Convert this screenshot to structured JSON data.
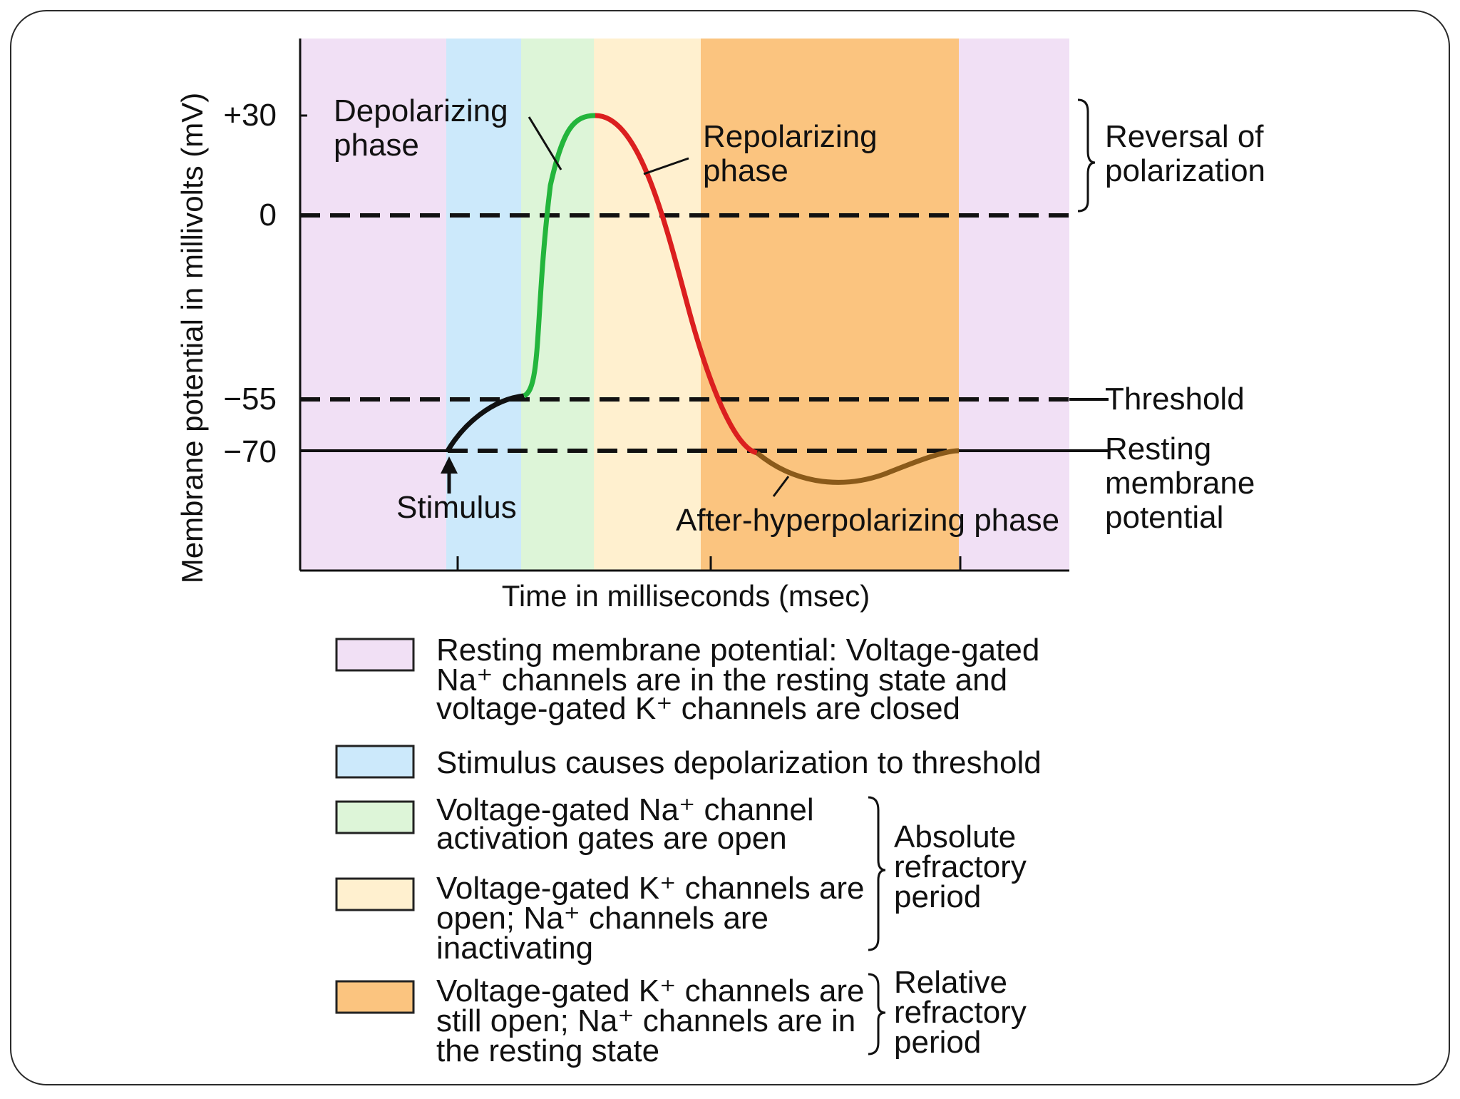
{
  "diagram": {
    "y_axis_label": "Membrane potential in millivolts (mV)",
    "x_axis_label": "Time in milliseconds (msec)",
    "y_ticks": [
      "+30",
      "0",
      "−55",
      "−70"
    ],
    "phase_labels": {
      "depolarizing_line1": "Depolarizing",
      "depolarizing_line2": "phase",
      "repolarizing_line1": "Repolarizing",
      "repolarizing_line2": "phase",
      "after_hyperpolarizing": "After-hyperpolarizing phase",
      "stimulus": "Stimulus"
    },
    "side_labels": {
      "reversal_line1": "Reversal of",
      "reversal_line2": "polarization",
      "threshold": "Threshold",
      "resting_line1": "Resting",
      "resting_line2": "membrane",
      "resting_line3": "potential"
    },
    "colors": {
      "resting": "#f1e0f5",
      "stimulus": "#cce9fb",
      "na_open": "#ddf5d8",
      "k_open": "#fff0cf",
      "k_still_open": "#fbc47f",
      "rising": "#23b53c",
      "falling": "#db1f1f",
      "hyper": "#8a5a1a",
      "baseline": "#111111"
    },
    "legend": [
      {
        "color_key": "resting",
        "lines": [
          "Resting membrane potential: Voltage-gated",
          "Na⁺ channels are in the resting state and",
          "voltage-gated K⁺ channels are closed"
        ]
      },
      {
        "color_key": "stimulus",
        "lines": [
          "Stimulus causes depolarization to threshold"
        ]
      },
      {
        "color_key": "na_open",
        "lines": [
          "Voltage-gated Na⁺ channel",
          "activation gates are open"
        ]
      },
      {
        "color_key": "k_open",
        "lines": [
          "Voltage-gated K⁺ channels are",
          "open; Na⁺ channels are",
          "inactivating"
        ]
      },
      {
        "color_key": "k_still_open",
        "lines": [
          "Voltage-gated K⁺ channels are",
          "still open; Na⁺ channels are in",
          "the resting state"
        ]
      }
    ],
    "brackets": {
      "absolute_line1": "Absolute",
      "absolute_line2": "refractory",
      "absolute_line3": "period",
      "relative_line1": "Relative",
      "relative_line2": "refractory",
      "relative_line3": "period"
    }
  }
}
